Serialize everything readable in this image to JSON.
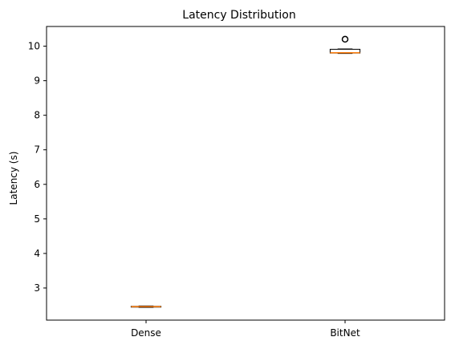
{
  "chart_data": {
    "type": "box",
    "title": "Latency Distribution",
    "xlabel": "",
    "ylabel": "Latency (s)",
    "categories": [
      "Dense",
      "BitNet"
    ],
    "ylim": [
      2.07,
      10.57
    ],
    "yticks": [
      3,
      4,
      5,
      6,
      7,
      8,
      9,
      10
    ],
    "grid": false,
    "boxes": [
      {
        "label": "Dense",
        "whisker_low": 2.44,
        "q1": 2.45,
        "median": 2.46,
        "q3": 2.47,
        "whisker_high": 2.48,
        "outliers": []
      },
      {
        "label": "BitNet",
        "whisker_low": 9.79,
        "q1": 9.8,
        "median": 9.81,
        "q3": 9.91,
        "whisker_high": 9.92,
        "outliers": [
          10.2
        ]
      }
    ],
    "colors": {
      "box": "#000000",
      "median": "#ff7f0e",
      "outlier_edge": "#000000"
    }
  }
}
